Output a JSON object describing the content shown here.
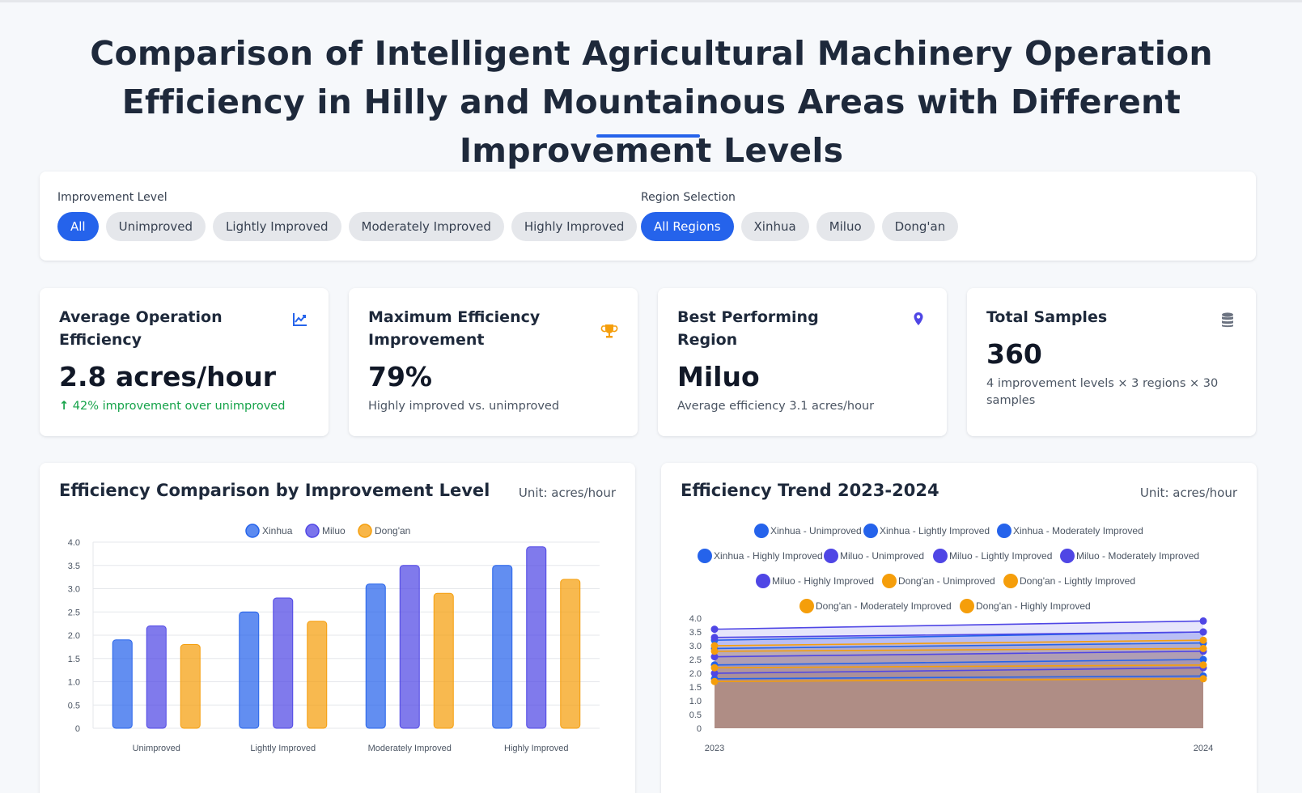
{
  "page": {
    "title": "Comparison of Intelligent Agricultural Machinery Operation Efficiency in Hilly and Mountainous Areas with Different Improvement Levels"
  },
  "filters": {
    "improvement": {
      "label": "Improvement Level",
      "options": [
        "All",
        "Unimproved",
        "Lightly Improved",
        "Moderately Improved",
        "Highly Improved"
      ],
      "selected": "All"
    },
    "region": {
      "label": "Region Selection",
      "options": [
        "All Regions",
        "Xinhua",
        "Miluo",
        "Dong'an"
      ],
      "selected": "All Regions"
    }
  },
  "stats": [
    {
      "title": "Average Operation Efficiency",
      "value": "2.8 acres/hour",
      "note": "42% improvement over unimproved",
      "icon": "chart-line-icon",
      "icon_color": "#2563eb"
    },
    {
      "title": "Maximum Efficiency Improvement",
      "value": "79%",
      "note": "Highly improved vs. unimproved",
      "icon": "trophy-icon",
      "icon_color": "#f59e0b"
    },
    {
      "title": "Best Performing Region",
      "value": "Miluo",
      "note": "Average efficiency 3.1 acres/hour",
      "icon": "map-pin-icon",
      "icon_color": "#4f46e5"
    },
    {
      "title": "Total Samples",
      "value": "360",
      "note": "4 improvement levels × 3 regions × 30 samples",
      "icon": "database-icon",
      "icon_color": "#6b7280"
    }
  ],
  "colors": {
    "Xinhua": "#2563eb",
    "Miluo": "#4f46e5",
    "Dong'an": "#f59e0b",
    "accent": "#2563eb",
    "positive": "#16a34a"
  },
  "charts": {
    "bar": {
      "title": "Efficiency Comparison by Improvement Level",
      "unit": "Unit: acres/hour"
    },
    "trend": {
      "title": "Efficiency Trend 2023-2024",
      "unit": "Unit: acres/hour"
    }
  },
  "chart_data": [
    {
      "type": "bar",
      "categories": [
        "Unimproved",
        "Lightly Improved",
        "Moderately Improved",
        "Highly Improved"
      ],
      "series": [
        {
          "name": "Xinhua",
          "values": [
            1.9,
            2.5,
            3.1,
            3.5
          ]
        },
        {
          "name": "Miluo",
          "values": [
            2.2,
            2.8,
            3.5,
            3.9
          ]
        },
        {
          "name": "Dong'an",
          "values": [
            1.8,
            2.3,
            2.9,
            3.2
          ]
        }
      ],
      "ylim": [
        0,
        4.0
      ],
      "yticks": [
        "0",
        "0.5",
        "1.0",
        "1.5",
        "2.0",
        "2.5",
        "3.0",
        "3.5",
        "4.0"
      ],
      "grid": true,
      "legend": "top-center"
    },
    {
      "type": "area",
      "x": [
        "2023",
        "2024"
      ],
      "series": [
        {
          "name": "Xinhua - Unimproved",
          "values": [
            1.8,
            1.9
          ]
        },
        {
          "name": "Xinhua - Lightly Improved",
          "values": [
            2.3,
            2.5
          ]
        },
        {
          "name": "Xinhua - Moderately Improved",
          "values": [
            2.9,
            3.1
          ]
        },
        {
          "name": "Xinhua - Highly Improved",
          "values": [
            3.2,
            3.5
          ]
        },
        {
          "name": "Miluo - Unimproved",
          "values": [
            2.0,
            2.2
          ]
        },
        {
          "name": "Miluo - Lightly Improved",
          "values": [
            2.6,
            2.8
          ]
        },
        {
          "name": "Miluo - Moderately Improved",
          "values": [
            3.3,
            3.5
          ]
        },
        {
          "name": "Miluo - Highly Improved",
          "values": [
            3.6,
            3.9
          ]
        },
        {
          "name": "Dong'an - Unimproved",
          "values": [
            1.7,
            1.8
          ]
        },
        {
          "name": "Dong'an - Lightly Improved",
          "values": [
            2.2,
            2.3
          ]
        },
        {
          "name": "Dong'an - Moderately Improved",
          "values": [
            2.8,
            2.9
          ]
        },
        {
          "name": "Dong'an - Highly Improved",
          "values": [
            3.0,
            3.2
          ]
        }
      ],
      "ylim": [
        0,
        4.0
      ],
      "yticks": [
        "0",
        "0.5",
        "1.0",
        "1.5",
        "2.0",
        "2.5",
        "3.0",
        "3.5",
        "4.0"
      ],
      "grid": false,
      "legend": "top-center"
    }
  ]
}
